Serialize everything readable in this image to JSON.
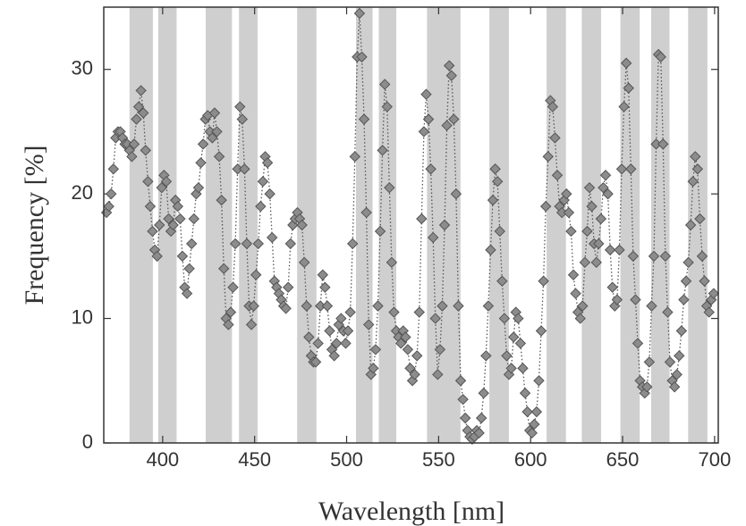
{
  "chart_data": {
    "type": "line",
    "marker": "diamond",
    "x_label": "Wavelength  [nm]",
    "y_label": "Frequency  [%]",
    "xlim": [
      368,
      702
    ],
    "ylim": [
      0,
      35
    ],
    "xticks": [
      400,
      450,
      500,
      550,
      600,
      650,
      700
    ],
    "yticks": [
      0,
      10,
      20,
      30
    ],
    "color": "#8c8c8c",
    "band_color": "#cfcfcf",
    "bands": [
      [
        382,
        394.7
      ],
      [
        397.6,
        407.6
      ],
      [
        423.4,
        437.7
      ],
      [
        441.5,
        451.6
      ],
      [
        473.1,
        483.6
      ],
      [
        505.1,
        514.1
      ],
      [
        517.5,
        527
      ],
      [
        543.7,
        561.9
      ],
      [
        577.6,
        588.2
      ],
      [
        608.7,
        619.2
      ],
      [
        627.8,
        638.3
      ],
      [
        648.8,
        659.3
      ],
      [
        665.5,
        675.5
      ],
      [
        685.6,
        696.1
      ]
    ],
    "x": [
      369.5,
      370.75,
      372,
      373.25,
      374.5,
      375.75,
      377,
      378.25,
      379.5,
      380.75,
      382,
      383.25,
      384.5,
      385.75,
      387,
      388.25,
      389.5,
      390.75,
      392,
      393.25,
      394.5,
      395.75,
      397,
      398.25,
      399.5,
      400.75,
      402,
      403.25,
      404.5,
      405.75,
      407,
      408.25,
      409.5,
      410.75,
      412,
      413.25,
      414.5,
      415.75,
      417,
      418.25,
      419.5,
      420.75,
      422,
      423.25,
      424.5,
      425.75,
      427,
      428.25,
      429.5,
      430.75,
      432,
      433.25,
      434.5,
      435.75,
      437,
      438.25,
      439.5,
      440.75,
      442,
      443.25,
      444.5,
      445.75,
      447,
      448.25,
      449.5,
      450.75,
      452,
      453.25,
      454.5,
      455.75,
      457,
      458.25,
      459.5,
      460.75,
      462,
      463.25,
      464.5,
      465.75,
      467,
      468.25,
      469.5,
      470.75,
      472,
      473.25,
      474.5,
      475.75,
      477,
      478.25,
      479.5,
      480.75,
      482,
      483.25,
      484.5,
      485.75,
      487,
      488.25,
      489.5,
      490.75,
      492,
      493.25,
      494.5,
      495.75,
      497,
      498.25,
      499.5,
      500.75,
      502,
      503.25,
      504.5,
      505.75,
      507,
      508.25,
      509.5,
      510.75,
      512,
      513.25,
      514.5,
      515.75,
      517,
      518.25,
      519.5,
      520.75,
      522,
      523.25,
      524.5,
      525.75,
      527,
      528.25,
      529.5,
      530.75,
      532,
      533.25,
      534.5,
      535.75,
      537,
      538.25,
      539.5,
      540.75,
      542,
      543.25,
      544.5,
      545.75,
      547,
      548.25,
      549.5,
      550.75,
      552,
      553.25,
      554.5,
      555.75,
      557,
      558.25,
      559.5,
      560.75,
      562,
      563.25,
      564.5,
      565.75,
      567,
      568.25,
      569.5,
      570.75,
      572,
      573.25,
      574.5,
      575.75,
      577,
      578.25,
      579.5,
      580.75,
      582,
      583.25,
      584.5,
      585.75,
      587,
      588.25,
      589.5,
      590.75,
      592,
      593.25,
      594.5,
      595.75,
      597,
      598.25,
      599.5,
      600.75,
      602,
      603.25,
      604.5,
      605.75,
      607,
      608.25,
      609.5,
      610.75,
      612,
      613.25,
      614.5,
      615.75,
      617,
      618.25,
      619.5,
      620.75,
      622,
      623.25,
      624.5,
      625.75,
      627,
      628.25,
      629.5,
      630.75,
      632,
      633.25,
      634.5,
      635.75,
      637,
      638.25,
      639.5,
      640.75,
      642,
      643.25,
      644.5,
      645.75,
      647,
      648.25,
      649.5,
      650.75,
      652,
      653.25,
      654.5,
      655.75,
      657,
      658.25,
      659.5,
      660.75,
      662,
      663.25,
      664.5,
      665.75,
      667,
      668.25,
      669.5,
      670.75,
      672,
      673.25,
      674.5,
      675.75,
      677,
      678.25,
      679.5,
      680.75,
      682,
      683.25,
      684.5,
      685.75,
      687,
      688.25,
      689.5,
      690.75,
      692,
      693.25,
      694.5,
      695.75,
      697,
      698.25,
      699.5
    ],
    "values": [
      18.5,
      19,
      20,
      22,
      24.5,
      25,
      25,
      24.5,
      24,
      24,
      23.5,
      23,
      24,
      26,
      27,
      28.3,
      26.5,
      23.5,
      21,
      19,
      17,
      15.5,
      15,
      17.5,
      20.5,
      21.5,
      21,
      18,
      17,
      17.5,
      19.5,
      19,
      18,
      15,
      12.5,
      12,
      14,
      16,
      18,
      20,
      20.5,
      22.5,
      24,
      26,
      26.3,
      25,
      24.5,
      26.5,
      25,
      23,
      19.5,
      14,
      10,
      9.5,
      10.5,
      12.5,
      16,
      22,
      27,
      26,
      22,
      16,
      11,
      9.5,
      11,
      13.5,
      16,
      19,
      21,
      23,
      22.5,
      20,
      16.5,
      13,
      12.5,
      12,
      11.5,
      11,
      10.8,
      12.5,
      16,
      17.5,
      18,
      18.5,
      18,
      17.5,
      14.5,
      11,
      8.5,
      7,
      6.5,
      6.5,
      8,
      11,
      13.5,
      12.5,
      11,
      9,
      7.5,
      7,
      8,
      9.5,
      10,
      9,
      8,
      9,
      10.5,
      16,
      23,
      31,
      34.5,
      31,
      26,
      18.5,
      9.5,
      5.5,
      6,
      7.5,
      11,
      17,
      23.5,
      28.8,
      27,
      20.5,
      14.5,
      10.5,
      9,
      8.5,
      8,
      9,
      8.5,
      7.5,
      6,
      5,
      5.5,
      7,
      10.5,
      18,
      25,
      28,
      26,
      22,
      16.5,
      10,
      5.5,
      7.5,
      11,
      17.5,
      25.5,
      30.3,
      29.5,
      26,
      20,
      11,
      5,
      3.5,
      2,
      1,
      0.5,
      0.3,
      0.5,
      1,
      0.8,
      2,
      4,
      7,
      11,
      15.5,
      19.5,
      22,
      21,
      17,
      13,
      10,
      7,
      5.5,
      6,
      8.5,
      10.5,
      10,
      8,
      6,
      4,
      2.5,
      1,
      0.8,
      1.5,
      2.5,
      5,
      9,
      13,
      19,
      23,
      27.5,
      27,
      24.5,
      21.5,
      19,
      18.5,
      19.5,
      20,
      18.5,
      17,
      13.5,
      12,
      10.5,
      10,
      11,
      14.5,
      17,
      20.5,
      19,
      16,
      14.5,
      16,
      18,
      20.5,
      21.5,
      20,
      15.5,
      12.5,
      11,
      11.5,
      15.5,
      22,
      27,
      30.5,
      28.5,
      22,
      15,
      11.5,
      8,
      5,
      4.5,
      4,
      4.5,
      6.5,
      11,
      15,
      24,
      31.2,
      31,
      24,
      15,
      10.5,
      6.5,
      5,
      4.5,
      5.5,
      7,
      9,
      11.5,
      13,
      14.5,
      17.5,
      21,
      23,
      22,
      18,
      15,
      13,
      11,
      10.5,
      11.5,
      12
    ]
  }
}
